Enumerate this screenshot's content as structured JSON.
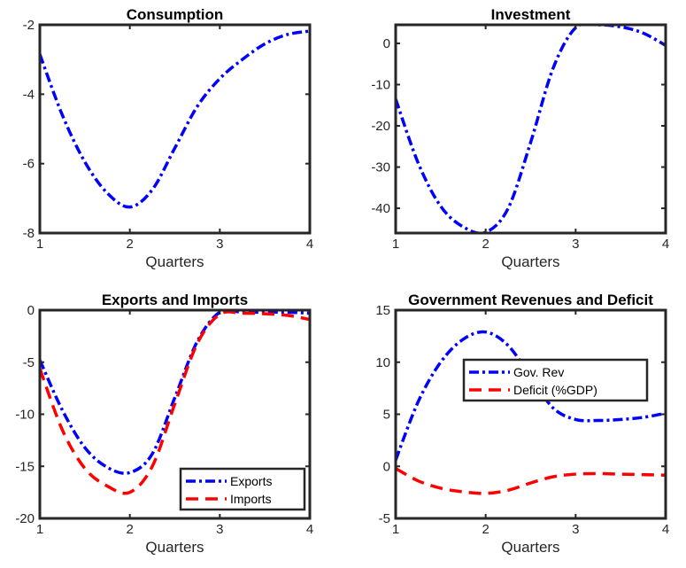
{
  "chart_data": [
    {
      "type": "line",
      "title": "Consumption",
      "xlabel": "Quarters",
      "ylabel": "",
      "xlim": [
        1,
        4
      ],
      "ylim": [
        -8,
        -2
      ],
      "xticks": [
        1,
        2,
        3,
        4
      ],
      "yticks": [
        -8,
        -6,
        -4,
        -2
      ],
      "grid": false,
      "legend": null,
      "series": [
        {
          "name": "",
          "style": "dashdot",
          "color": "#0000ff",
          "x": [
            1,
            1.25,
            1.5,
            1.75,
            2,
            2.25,
            2.5,
            2.75,
            3,
            3.25,
            3.5,
            3.75,
            4
          ],
          "y": [
            -2.85,
            -4.6,
            -5.95,
            -6.85,
            -7.25,
            -6.75,
            -5.55,
            -4.35,
            -3.55,
            -3.0,
            -2.55,
            -2.28,
            -2.18
          ]
        }
      ]
    },
    {
      "type": "line",
      "title": "Investment",
      "xlabel": "Quarters",
      "ylabel": "",
      "xlim": [
        1,
        4
      ],
      "ylim": [
        -46,
        4.5
      ],
      "xticks": [
        1,
        2,
        3,
        4
      ],
      "yticks": [
        -40,
        -30,
        -20,
        -10,
        0
      ],
      "grid": false,
      "legend": null,
      "series": [
        {
          "name": "",
          "style": "dashdot",
          "color": "#0000ff",
          "x": [
            1,
            1.25,
            1.5,
            1.75,
            2,
            2.25,
            2.5,
            2.75,
            3,
            3.25,
            3.5,
            3.75,
            4
          ],
          "y": [
            -13.5,
            -29,
            -39.5,
            -44.5,
            -45.8,
            -40,
            -24,
            -6,
            3.8,
            4.5,
            4.0,
            2.5,
            -0.5
          ]
        }
      ]
    },
    {
      "type": "line",
      "title": "Exports and Imports",
      "xlabel": "Quarters",
      "ylabel": "",
      "xlim": [
        1,
        4
      ],
      "ylim": [
        -20,
        0
      ],
      "xticks": [
        1,
        2,
        3,
        4
      ],
      "yticks": [
        -20,
        -15,
        -10,
        -5,
        0
      ],
      "grid": false,
      "legend": "bottom-right",
      "series": [
        {
          "name": "Exports",
          "style": "dashdot",
          "color": "#0000ff",
          "x": [
            1,
            1.25,
            1.5,
            1.75,
            2,
            2.25,
            2.5,
            2.75,
            3,
            3.25,
            3.5,
            3.75,
            4
          ],
          "y": [
            -4.8,
            -9.6,
            -13.2,
            -15.1,
            -15.6,
            -13.8,
            -8.4,
            -3.0,
            -0.2,
            -0.2,
            -0.2,
            -0.2,
            -0.3
          ]
        },
        {
          "name": "Imports",
          "style": "dashed",
          "color": "#ff0000",
          "x": [
            1,
            1.25,
            1.5,
            1.75,
            2,
            2.25,
            2.5,
            2.75,
            3,
            3.25,
            3.5,
            3.75,
            4
          ],
          "y": [
            -5.6,
            -11.5,
            -15.2,
            -16.9,
            -17.5,
            -15.0,
            -9.0,
            -3.2,
            -0.4,
            -0.3,
            -0.35,
            -0.5,
            -0.9
          ]
        }
      ]
    },
    {
      "type": "line",
      "title": "Government Revenues and Deficit",
      "xlabel": "Quarters",
      "ylabel": "",
      "xlim": [
        1,
        4
      ],
      "ylim": [
        -5,
        15
      ],
      "xticks": [
        1,
        2,
        3,
        4
      ],
      "yticks": [
        -5,
        0,
        5,
        10,
        15
      ],
      "grid": false,
      "legend": "top-right",
      "series": [
        {
          "name": "Gov. Rev",
          "style": "dashdot",
          "color": "#0000ff",
          "x": [
            1,
            1.25,
            1.5,
            1.75,
            2,
            2.25,
            2.5,
            2.75,
            3,
            3.25,
            3.5,
            3.75,
            4
          ],
          "y": [
            0.6,
            6.2,
            10.0,
            12.2,
            12.9,
            11.6,
            8.6,
            5.6,
            4.5,
            4.4,
            4.5,
            4.7,
            5.1
          ]
        },
        {
          "name": "Deficit (%GDP)",
          "style": "dashed",
          "color": "#ff0000",
          "x": [
            1,
            1.25,
            1.5,
            1.75,
            2,
            2.25,
            2.5,
            2.75,
            3,
            3.25,
            3.5,
            3.75,
            4
          ],
          "y": [
            -0.2,
            -1.4,
            -2.1,
            -2.45,
            -2.6,
            -2.3,
            -1.6,
            -1.0,
            -0.75,
            -0.7,
            -0.75,
            -0.8,
            -0.85
          ]
        }
      ]
    }
  ]
}
